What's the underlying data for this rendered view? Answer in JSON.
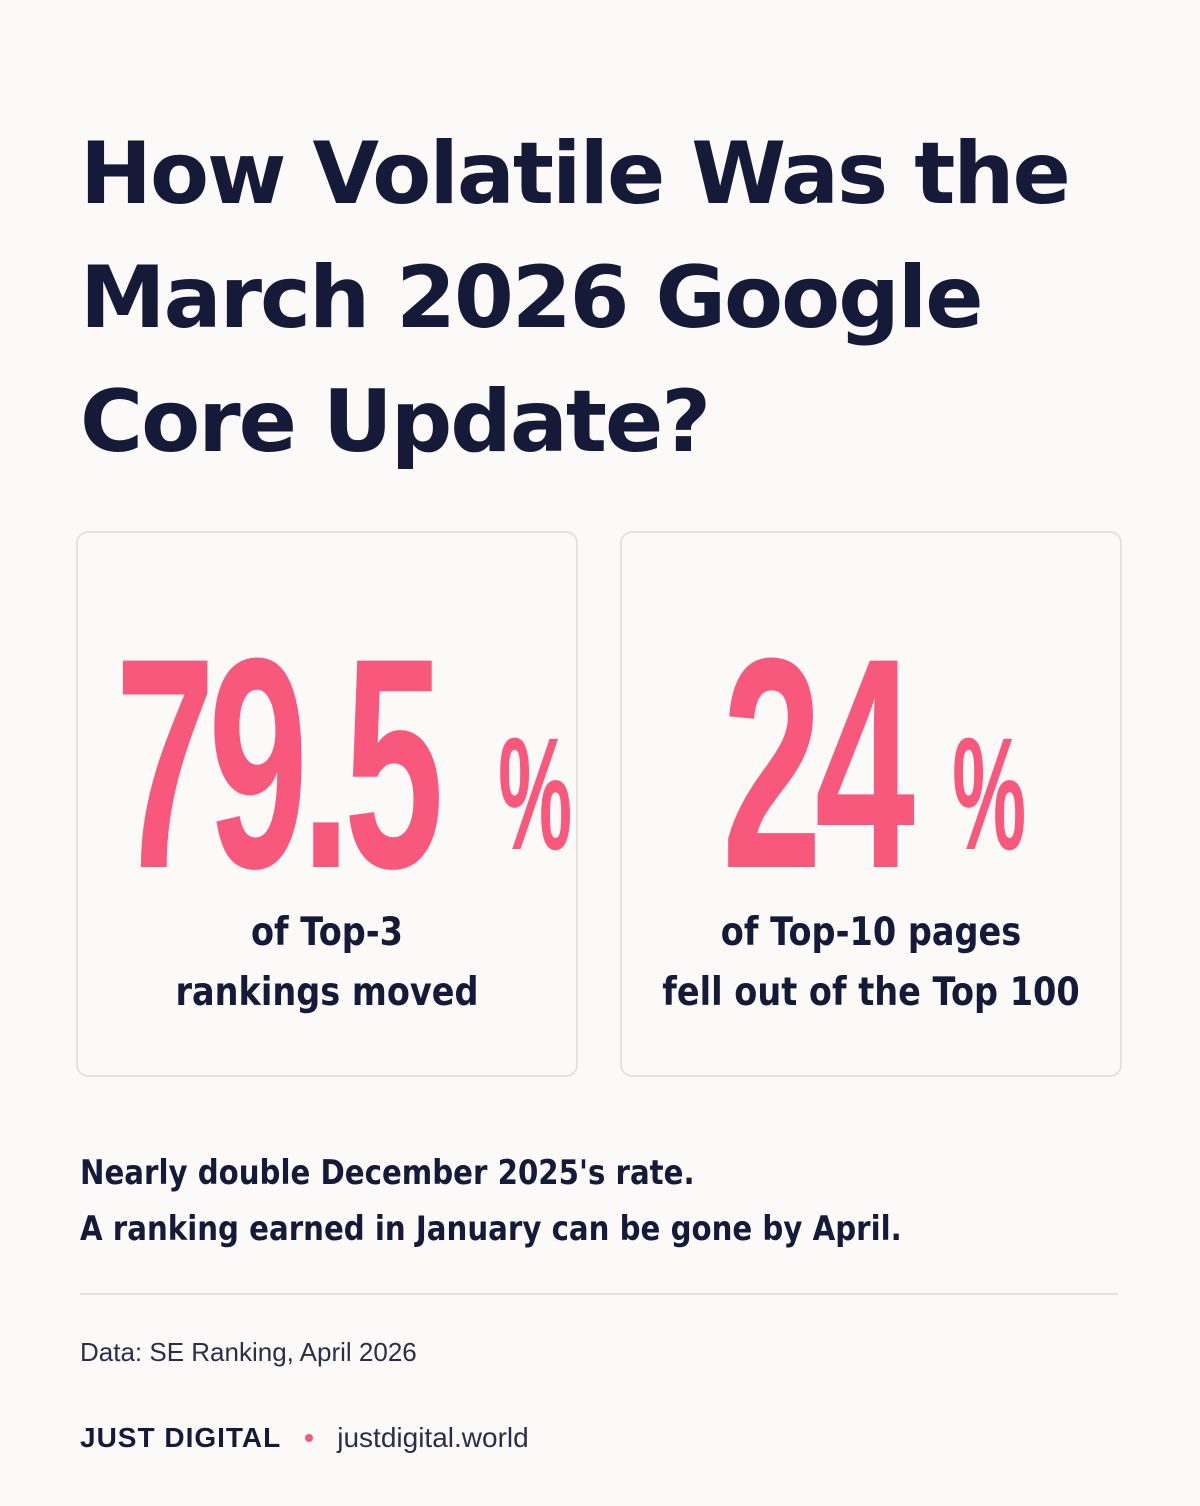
{
  "title": {
    "line1": "How Volatile Was the",
    "line2": "March 2026 Google",
    "line3": "Core Update?"
  },
  "stats": [
    {
      "number": "79.5",
      "unit": "%",
      "value_percent": 79.5,
      "label_line1": "of Top-3",
      "label_line2": "rankings moved"
    },
    {
      "number": "24",
      "unit": "%",
      "value_percent": 24,
      "label_line1": "of Top-10 pages",
      "label_line2": "fell out of the Top 100"
    }
  ],
  "summary": {
    "line1": "Nearly double December 2025's rate.",
    "line2": "A ranking earned in January can be gone by April."
  },
  "source": "Data: SE Ranking, April 2026",
  "footer": {
    "brand": "JUST DIGITAL",
    "website": "justdigital.world"
  },
  "colors": {
    "background": "#fbfaf8",
    "text": "#141a38",
    "accent": "#f8587c",
    "border": "#e4e3e1"
  }
}
